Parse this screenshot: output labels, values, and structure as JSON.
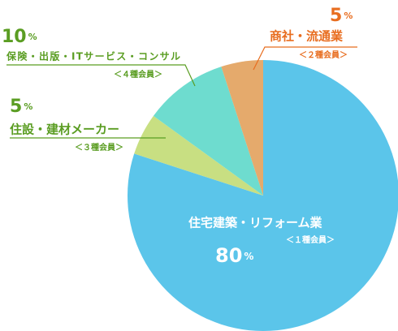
{
  "chart_data": {
    "type": "pie",
    "unit": "%",
    "categories": [
      "住宅建築・リフォーム業",
      "住設・建材メーカー",
      "保険・出版・ITサービス・コンサル",
      "商社・流通業"
    ],
    "sublabels": [
      "＜１種会員＞",
      "＜３種会員＞",
      "＜４種会員＞",
      "＜２種会員＞"
    ],
    "values": [
      80,
      5,
      10,
      5
    ],
    "colors": [
      "#5bc5ea",
      "#c8df82",
      "#6edccf",
      "#e5aa6c"
    ]
  }
}
